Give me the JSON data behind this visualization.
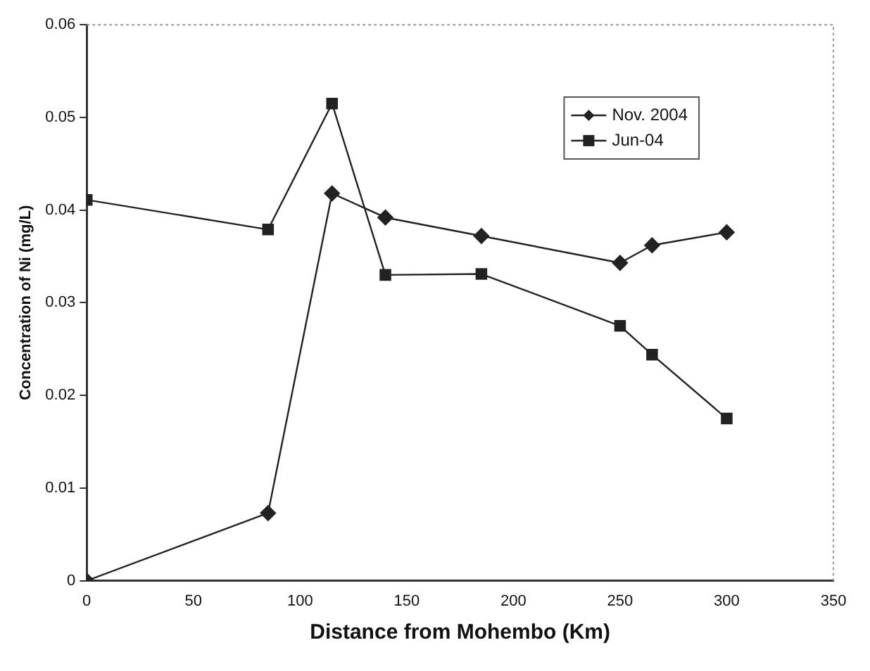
{
  "chart_data": {
    "type": "line",
    "xlabel": "Distance from Mohembo (Km)",
    "ylabel": "Concentration of Ni (mg/L)",
    "xlim": [
      0,
      350
    ],
    "xticks": [
      0,
      50,
      100,
      150,
      200,
      250,
      300,
      350
    ],
    "ylim": [
      0,
      0.06
    ],
    "yticks": [
      0,
      0.01,
      0.02,
      0.03,
      0.04,
      0.05,
      0.06
    ],
    "grid": false,
    "legend": "top right",
    "line_style": "solid",
    "series": [
      {
        "name": "Nov. 2004",
        "color": "#222222",
        "marker": "diamond",
        "x": [
          0,
          85,
          115,
          140,
          185,
          250,
          265,
          300
        ],
        "values": [
          0,
          0.0073,
          0.0418,
          0.0392,
          0.0372,
          0.0343,
          0.0362,
          0.0376
        ]
      },
      {
        "name": "Jun-04",
        "color": "#222222",
        "marker": "square",
        "x": [
          0,
          85,
          115,
          140,
          185,
          250,
          265,
          300
        ],
        "values": [
          0.0411,
          0.0379,
          0.0515,
          0.033,
          0.0331,
          0.0275,
          0.0244,
          0.0175
        ]
      }
    ]
  }
}
